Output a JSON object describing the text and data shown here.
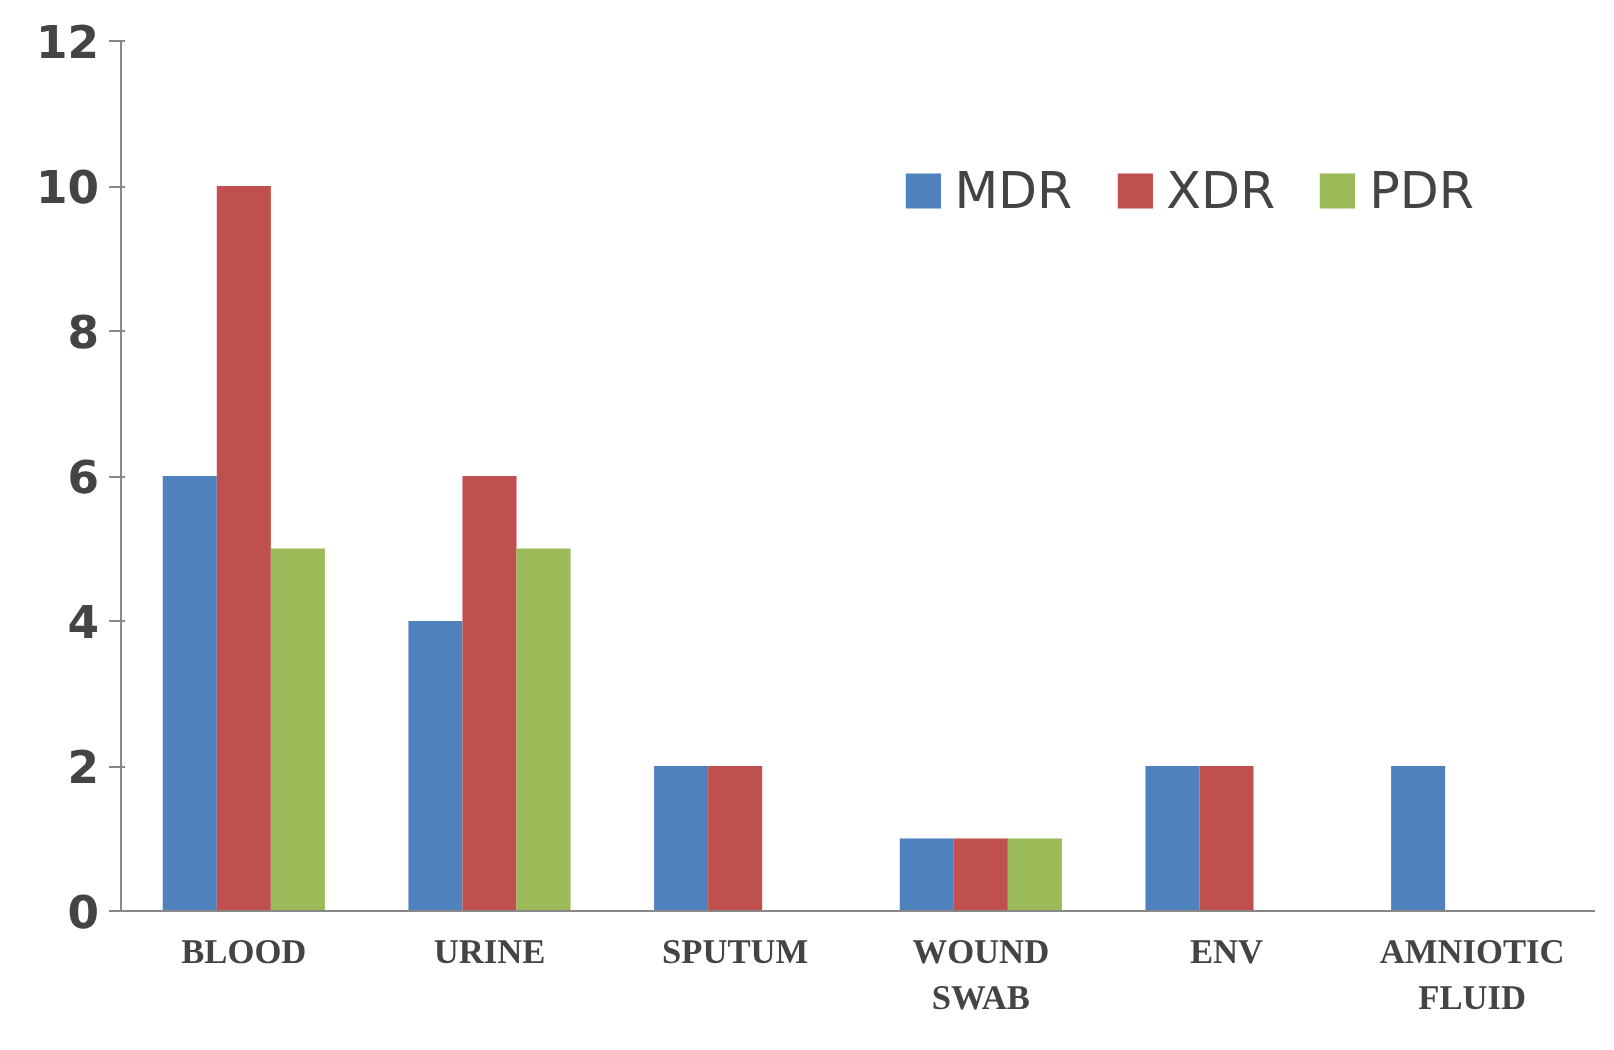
{
  "chart_data": {
    "type": "bar",
    "categories": [
      "BLOOD",
      "URINE",
      "SPUTUM",
      "WOUND\nSWAB",
      "ENV",
      "AMNIOTIC\nFLUID"
    ],
    "series": [
      {
        "name": "MDR",
        "color": "#4f81bd",
        "values": [
          6,
          4,
          2,
          1,
          2,
          2
        ]
      },
      {
        "name": "XDR",
        "color": "#c0504d",
        "values": [
          10,
          6,
          2,
          1,
          2,
          null
        ]
      },
      {
        "name": "PDR",
        "color": "#9bbb59",
        "values": [
          5,
          5,
          null,
          1,
          null,
          null
        ]
      }
    ],
    "ylim": [
      0,
      12
    ],
    "yticks": [
      0,
      2,
      4,
      6,
      8,
      10,
      12
    ],
    "grid": false,
    "legend": "top right"
  }
}
